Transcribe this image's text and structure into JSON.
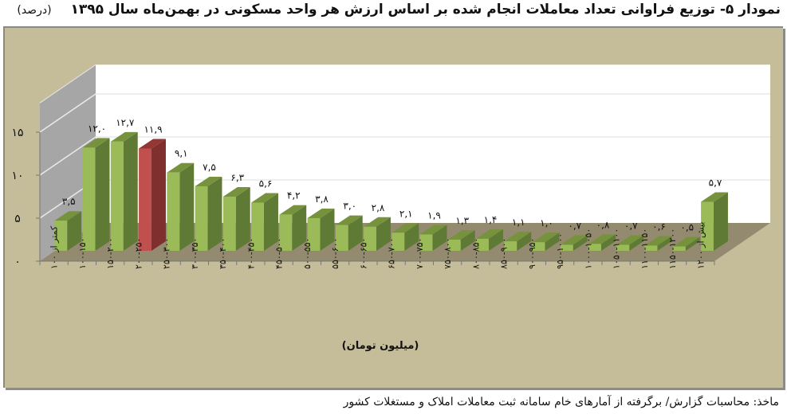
{
  "header": {
    "title": "نمودار ۵- توزیع فراوانی تعداد معاملات انجام شده بر اساس ارزش هر واحد مسکونی در بهمن‌ماه سال ۱۳۹۵",
    "unit": "(درصد)"
  },
  "footer": {
    "source": "ماخذ: محاسبات گزارش/ برگرفته از آمارهای خام سامانه ثبت معاملات املاک و مستغلات کشور"
  },
  "colors": {
    "frame": "#c5bd9a",
    "bar_front": "#9bbb59",
    "bar_side": "#5f7a35",
    "bar_top": "#76923c",
    "highlight_front": "#c0504d",
    "highlight_side": "#7f2f2d",
    "highlight_top": "#943634",
    "floor": "#938a70",
    "side_wall": "#a6a6a6",
    "back_wall": "#ffffff"
  },
  "chart_data": {
    "type": "bar",
    "subtype": "3d-column",
    "title": "نمودار ۵- توزیع فراوانی تعداد معاملات انجام شده بر اساس ارزش هر واحد مسکونی در بهمن‌ماه سال ۱۳۹۵",
    "xlabel": "(میلیون تومان)",
    "ylabel": "(درصد)",
    "ylim": [
      0,
      15
    ],
    "yticks": [
      "۰",
      "۵",
      "۱۰",
      "۱۵"
    ],
    "grid": true,
    "legend": null,
    "highlight_index": 3,
    "categories": [
      "کمتر از ۱۰۰",
      "۱۰۰-۱۵۰",
      "۱۵۰-۲۰۰",
      "۲۰۰-۲۵۰",
      "۲۵۰-۳۰۰",
      "۳۰۰-۳۵۰",
      "۳۵۰-۴۰۰",
      "۴۰۰-۴۵۰",
      "۴۵۰-۵۰۰",
      "۵۰۰-۵۵۰",
      "۵۵۰-۶۰۰",
      "۶۰۰-۶۵۰",
      "۶۵۰-۷۰۰",
      "۷۰۰-۷۵۰",
      "۷۵۰-۸۰۰",
      "۸۰۰-۸۵۰",
      "۸۵۰-۹۰۰",
      "۹۰۰-۹۵۰",
      "۹۵۰-۱۰۰۰",
      "۱۰۰۰-۱۰۵۰",
      "۱۰۵۰-۱۱۰۰",
      "۱۱۰۰-۱۱۵۰",
      "۱۱۵۰-۱۲۰۰",
      "بیش از ۱۲۰۰"
    ],
    "values": [
      3.5,
      12.0,
      12.7,
      11.9,
      9.1,
      7.5,
      6.3,
      5.6,
      4.2,
      3.8,
      3.0,
      2.8,
      2.1,
      1.9,
      1.3,
      1.4,
      1.1,
      1.0,
      0.7,
      0.8,
      0.7,
      0.6,
      0.5,
      5.7
    ],
    "value_labels": [
      "۳,۵",
      "۱۲,۰",
      "۱۲,۷",
      "۱۱,۹",
      "۹,۱",
      "۷,۵",
      "۶,۳",
      "۵,۶",
      "۴,۲",
      "۳,۸",
      "۳,۰",
      "۲,۸",
      "۲,۱",
      "۱,۹",
      "۱,۳",
      "۱,۴",
      "۱,۱",
      "۱,۰",
      "۰,۷",
      "۰,۸",
      "۰,۷",
      "۰,۶",
      "۰,۵",
      "۵,۷"
    ]
  }
}
